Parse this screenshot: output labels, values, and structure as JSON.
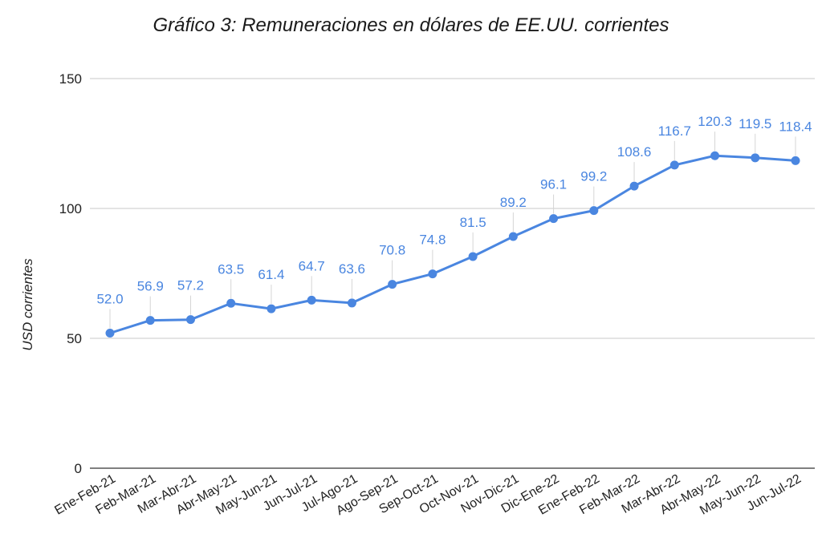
{
  "chart_data": {
    "type": "line",
    "title": "Gráfico 3: Remuneraciones en dólares de EE.UU. corrientes",
    "xlabel": "",
    "ylabel": "USD corrientes",
    "ylim": [
      0,
      150
    ],
    "yticks": [
      0,
      50,
      100,
      150
    ],
    "grid": true,
    "legend": "none",
    "line_color": "#4a86e0",
    "categories": [
      "Ene-Feb-21",
      "Feb-Mar-21",
      "Mar-Abr-21",
      "Abr-May-21",
      "May-Jun-21",
      "Jun-Jul-21",
      "Jul-Ago-21",
      "Ago-Sep-21",
      "Sep-Oct-21",
      "Oct-Nov-21",
      "Nov-Dic-21",
      "Dic-Ene-22",
      "Ene-Feb-22",
      "Feb-Mar-22",
      "Mar-Abr-22",
      "Abr-May-22",
      "May-Jun-22",
      "Jun-Jul-22"
    ],
    "values": [
      52.0,
      56.9,
      57.2,
      63.5,
      61.4,
      64.7,
      63.6,
      70.8,
      74.8,
      81.5,
      89.2,
      96.1,
      99.2,
      108.6,
      116.7,
      120.3,
      119.5,
      118.4
    ],
    "data_labels": [
      "52.0",
      "56.9",
      "57.2",
      "63.5",
      "61.4",
      "64.7",
      "63.6",
      "70.8",
      "74.8",
      "81.5",
      "89.2",
      "96.1",
      "99.2",
      "108.6",
      "116.7",
      "120.3",
      "119.5",
      "118.4"
    ]
  }
}
